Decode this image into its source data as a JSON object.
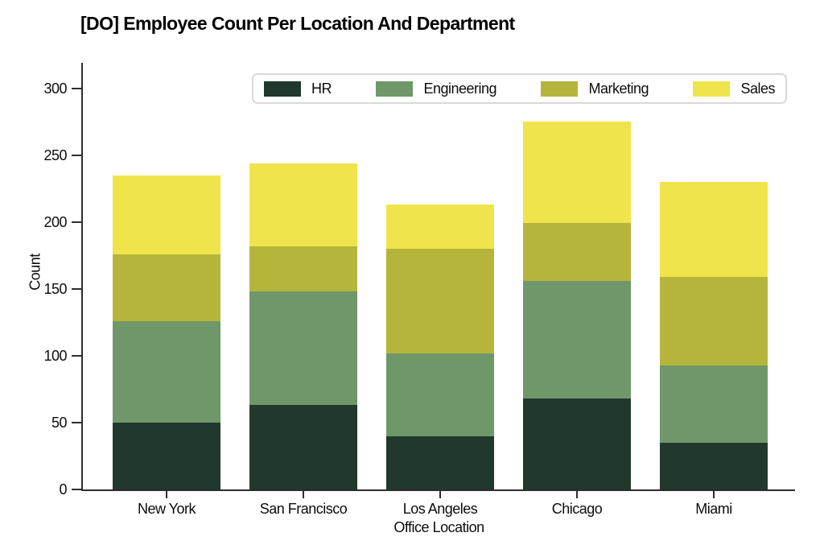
{
  "title": "[DO] Employee Count Per Location And Department",
  "chart_data": {
    "type": "bar",
    "stacked": true,
    "title": "[DO] Employee Count Per Location And Department",
    "xlabel": "Office Location",
    "ylabel": "Count",
    "categories": [
      "New York",
      "San Francisco",
      "Los Angeles",
      "Chicago",
      "Miami"
    ],
    "series": [
      {
        "name": "HR",
        "color": "#21382c",
        "values": [
          50,
          63,
          40,
          68,
          35
        ]
      },
      {
        "name": "Engineering",
        "color": "#6f9769",
        "values": [
          76,
          85,
          62,
          88,
          58
        ]
      },
      {
        "name": "Marketing",
        "color": "#b5b53c",
        "values": [
          50,
          34,
          78,
          43,
          66
        ]
      },
      {
        "name": "Sales",
        "color": "#f0e44c",
        "values": [
          59,
          62,
          33,
          76,
          71
        ]
      }
    ],
    "totals": [
      235,
      244,
      213,
      275,
      230
    ],
    "ylim": [
      0,
      319
    ],
    "yticks": [
      0,
      50,
      100,
      150,
      200,
      250,
      300
    ],
    "grid": false,
    "legend_position": "top-center"
  }
}
